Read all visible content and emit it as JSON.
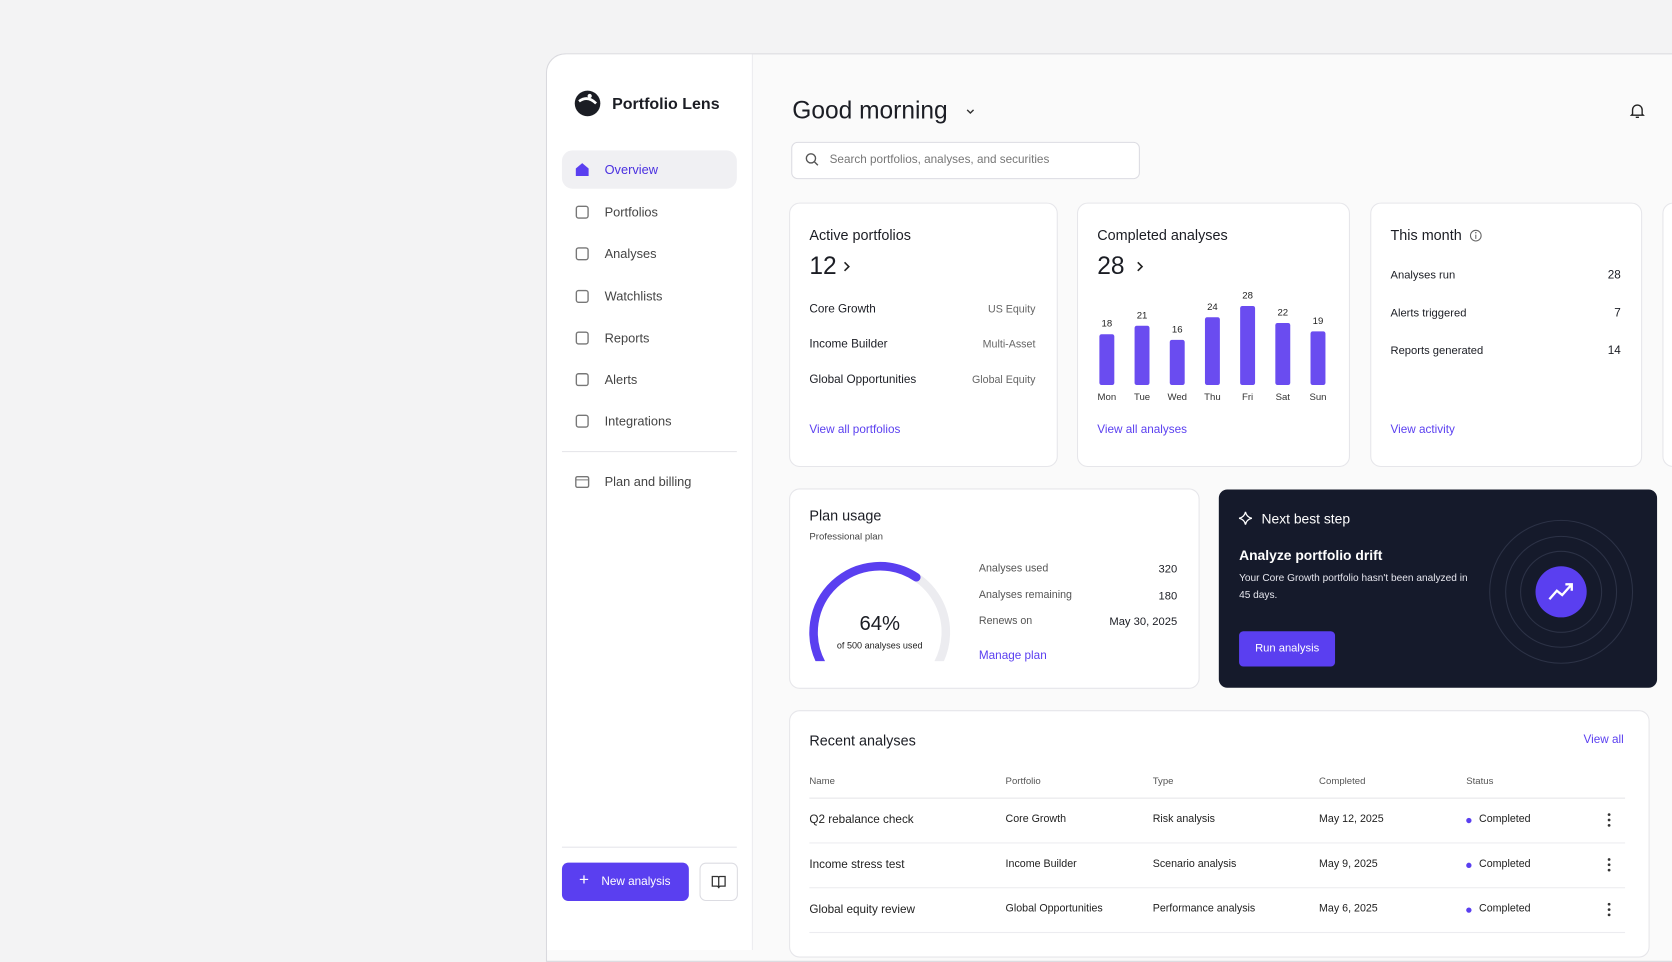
{
  "app": {
    "name": "Portfolio Lens"
  },
  "nav": {
    "items": [
      "Overview",
      "Portfolios",
      "Analyses",
      "Watchlists",
      "Reports",
      "Alerts",
      "Integrations"
    ],
    "billing": "Plan and billing",
    "new_button": "New analysis"
  },
  "header": {
    "greeting": "Good morning",
    "search_placeholder": "Search portfolios, analyses, and securities"
  },
  "active_portfolios": {
    "title": "Active portfolios",
    "count": 12,
    "items": [
      {
        "name": "Core Growth",
        "type": "US Equity"
      },
      {
        "name": "Income Builder",
        "type": "Multi-Asset"
      },
      {
        "name": "Global Opportunities",
        "type": "Global Equity"
      }
    ],
    "link": "View all portfolios"
  },
  "completed_analyses": {
    "title": "Completed analyses",
    "count": 28,
    "chart": {
      "type": "bar",
      "categories": [
        "Mon",
        "Tue",
        "Wed",
        "Thu",
        "Fri",
        "Sat",
        "Sun"
      ],
      "values": [
        18,
        21,
        16,
        24,
        28,
        22,
        19
      ],
      "color": "#6a4cf0"
    },
    "link": "View all analyses"
  },
  "this_month": {
    "title": "This month",
    "rows": [
      {
        "label": "Analyses run",
        "value": 28
      },
      {
        "label": "Alerts triggered",
        "value": 7
      },
      {
        "label": "Reports generated",
        "value": 14
      }
    ],
    "link": "View activity"
  },
  "plan_usage": {
    "title": "Plan usage",
    "plan": "Professional plan",
    "gauge": {
      "value": 64,
      "value_label": "64%",
      "caption": "of 500 analyses used"
    },
    "rows": [
      {
        "label": "Analyses used",
        "value": 320
      },
      {
        "label": "Analyses remaining",
        "value": 180
      },
      {
        "label": "Renews on",
        "value": "May 30, 2025"
      }
    ],
    "link": "Manage plan"
  },
  "next_step": {
    "eyebrow": "Next best step",
    "title": "Analyze portfolio drift",
    "body": "Your Core Growth portfolio hasn't been analyzed in 45 days.",
    "button": "Run analysis"
  },
  "recent": {
    "title": "Recent analyses",
    "link": "View all",
    "columns": [
      "Name",
      "Portfolio",
      "Type",
      "Completed",
      "Status"
    ],
    "rows": [
      [
        "Q2 rebalance check",
        "Core Growth",
        "Risk analysis",
        "May 12, 2025",
        "Completed"
      ],
      [
        "Income stress test",
        "Income Builder",
        "Scenario analysis",
        "May 9, 2025",
        "Completed"
      ],
      [
        "Global equity review",
        "Global Opportunities",
        "Performance analysis",
        "May 6, 2025",
        "Completed"
      ]
    ]
  }
}
